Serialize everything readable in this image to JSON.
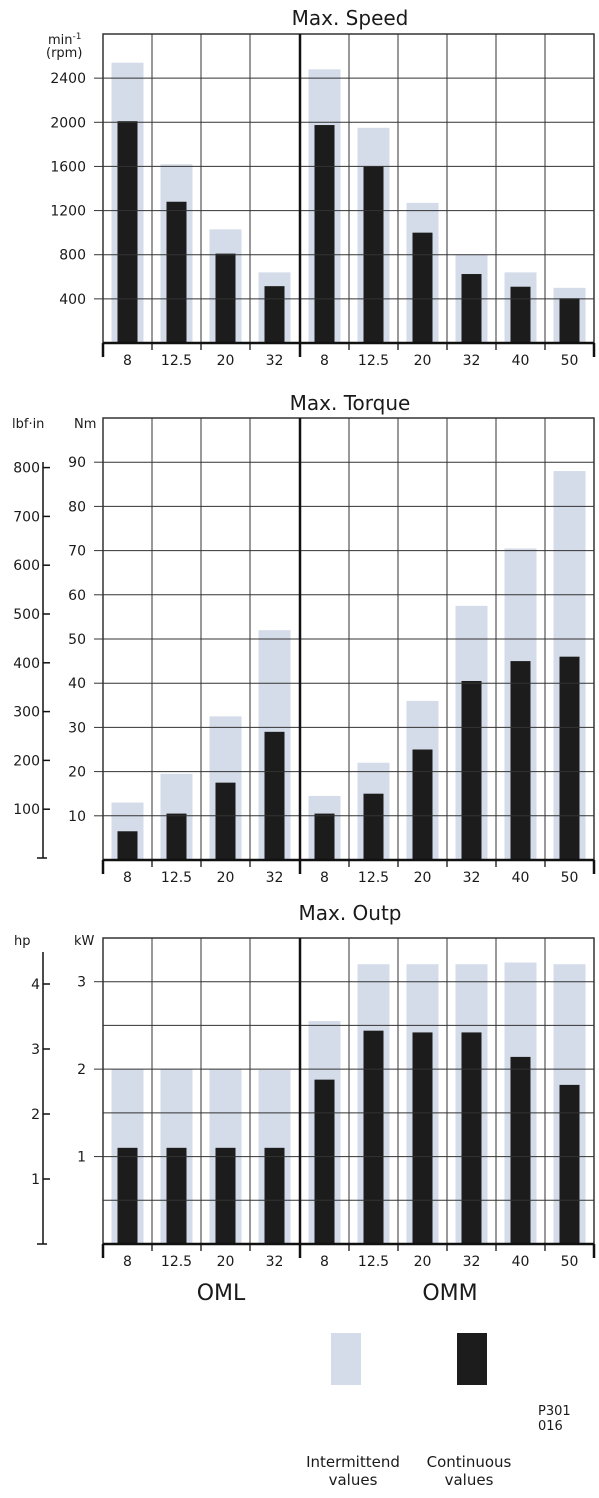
{
  "chart_data": [
    {
      "type": "bar",
      "title": "Max. Speed",
      "ylabel": "min-1",
      "ylabel2": "(rpm)",
      "ylim": [
        0,
        2800
      ],
      "yticks": [
        400,
        800,
        1200,
        1600,
        2000,
        2400
      ],
      "groups": [
        {
          "name": "OML",
          "categories": [
            "8",
            "12.5",
            "20",
            "32"
          ],
          "series": [
            {
              "name": "Intermittend values",
              "values": [
                2540,
                1620,
                1030,
                640
              ]
            },
            {
              "name": "Continuous values",
              "values": [
                2010,
                1280,
                810,
                515
              ]
            }
          ]
        },
        {
          "name": "OMM",
          "categories": [
            "8",
            "12.5",
            "20",
            "32",
            "40",
            "50"
          ],
          "series": [
            {
              "name": "Intermittend values",
              "values": [
                2480,
                1950,
                1270,
                800,
                640,
                500
              ]
            },
            {
              "name": "Continuous values",
              "values": [
                1975,
                1600,
                1000,
                625,
                510,
                405
              ]
            }
          ]
        }
      ]
    },
    {
      "type": "bar",
      "title": "Max. Torque",
      "ylabel": "Nm",
      "ylim": [
        0,
        100
      ],
      "yticks": [
        10,
        20,
        30,
        40,
        50,
        60,
        70,
        80,
        90
      ],
      "secondary_axis": {
        "label": "lbf·in",
        "ticks": [
          100,
          200,
          300,
          400,
          500,
          600,
          700,
          800
        ]
      },
      "groups": [
        {
          "name": "OML",
          "categories": [
            "8",
            "12.5",
            "20",
            "32"
          ],
          "series": [
            {
              "name": "Intermittend values",
              "values": [
                13,
                19.5,
                32.5,
                52
              ]
            },
            {
              "name": "Continuous values",
              "values": [
                6.5,
                10.5,
                17.5,
                29
              ]
            }
          ]
        },
        {
          "name": "OMM",
          "categories": [
            "8",
            "12.5",
            "20",
            "32",
            "40",
            "50"
          ],
          "series": [
            {
              "name": "Intermittend values",
              "values": [
                14.5,
                22,
                36,
                57.5,
                70.5,
                88
              ]
            },
            {
              "name": "Continuous values",
              "values": [
                10.5,
                15,
                25,
                40.5,
                45,
                46
              ]
            }
          ]
        }
      ]
    },
    {
      "type": "bar",
      "title": "Max. Outp",
      "ylabel": "kW",
      "ylim": [
        0,
        3.5
      ],
      "yticks": [
        1,
        2,
        3
      ],
      "secondary_axis": {
        "label": "hp",
        "ticks": [
          1,
          2,
          3,
          4
        ]
      },
      "groups": [
        {
          "name": "OML",
          "categories": [
            "8",
            "12.5",
            "20",
            "32"
          ],
          "series": [
            {
              "name": "Intermittend values",
              "values": [
                2.0,
                2.0,
                2.0,
                1.99
              ]
            },
            {
              "name": "Continuous values",
              "values": [
                1.1,
                1.1,
                1.1,
                1.1
              ]
            }
          ]
        },
        {
          "name": "OMM",
          "categories": [
            "8",
            "12.5",
            "20",
            "32",
            "40",
            "50"
          ],
          "series": [
            {
              "name": "Intermittend values",
              "values": [
                2.55,
                3.2,
                3.2,
                3.2,
                3.22,
                3.2
              ]
            },
            {
              "name": "Continuous values",
              "values": [
                1.88,
                2.44,
                2.42,
                2.42,
                2.14,
                1.82
              ]
            }
          ]
        }
      ]
    }
  ],
  "group_labels": [
    "OML",
    "OMM"
  ],
  "legend": {
    "intermittent": {
      "line1": "Intermittend",
      "line2": "values",
      "color": "#d5dce9"
    },
    "continuous": {
      "line1": "Continuous",
      "line2": "values",
      "color": "#1c1c1c"
    }
  },
  "figure_code": "P301 016"
}
